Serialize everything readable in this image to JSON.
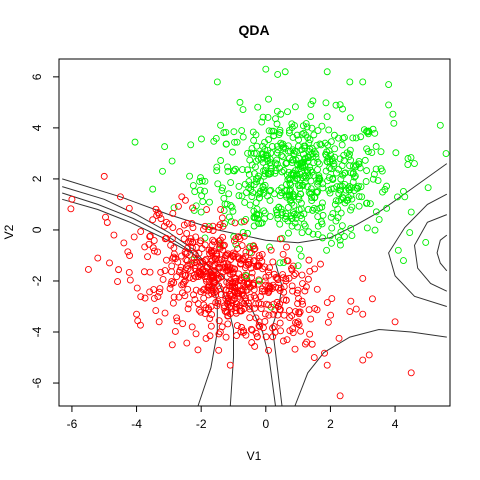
{
  "chart_data": {
    "type": "scatter",
    "title": "QDA",
    "xlabel": "V1",
    "ylabel": "V2",
    "xlim": [
      -6.4,
      5.7
    ],
    "ylim": [
      -6.9,
      6.7
    ],
    "x_ticks": [
      -6,
      -4,
      -2,
      0,
      2,
      4
    ],
    "y_ticks": [
      -6,
      -4,
      -2,
      0,
      2,
      4,
      6
    ],
    "grid": false,
    "legend": "none",
    "marker": "open-circle",
    "series": [
      {
        "color": "#00ee00",
        "center": [
          1.0,
          2.0
        ],
        "spread": [
          1.45,
          1.25
        ],
        "count": 600,
        "points": [
          [
            -0.8,
            5.0
          ],
          [
            0.0,
            6.3
          ],
          [
            0.6,
            6.2
          ],
          [
            1.9,
            6.2
          ],
          [
            2.6,
            5.8
          ],
          [
            3.0,
            5.8
          ],
          [
            3.8,
            5.7
          ],
          [
            3.8,
            4.9
          ],
          [
            5.4,
            4.1
          ],
          [
            -1.5,
            5.8
          ],
          [
            -2.9,
            2.7
          ],
          [
            -1.4,
            4.1
          ],
          [
            4.4,
            2.8
          ],
          [
            4.6,
            2.6
          ],
          [
            4.3,
            1.3
          ],
          [
            4.5,
            0.7
          ],
          [
            -0.6,
            -1.8
          ],
          [
            -0.2,
            -2.0
          ],
          [
            1.0,
            -1.4
          ],
          [
            2.3,
            -0.4
          ],
          [
            -2.0,
            0.7
          ],
          [
            -2.2,
            1.5
          ],
          [
            4.1,
            -0.8
          ],
          [
            -3.5,
            1.6
          ]
        ]
      },
      {
        "color": "#ff0000",
        "center": [
          -1.2,
          -2.0
        ],
        "spread": [
          1.3,
          1.2
        ],
        "count": 600,
        "points": [
          [
            -6.0,
            1.2
          ],
          [
            -5.0,
            2.1
          ],
          [
            -4.5,
            1.3
          ],
          [
            -3.5,
            0.4
          ],
          [
            -3.3,
            0.6
          ],
          [
            -4.7,
            -0.2
          ],
          [
            -5.2,
            -1.1
          ],
          [
            -4.0,
            -3.3
          ],
          [
            -3.3,
            -3.6
          ],
          [
            -2.1,
            -4.7
          ],
          [
            -1.1,
            -5.3
          ],
          [
            1.5,
            -5.0
          ],
          [
            1.9,
            -5.3
          ],
          [
            2.3,
            -6.5
          ],
          [
            3.0,
            -5.1
          ],
          [
            3.2,
            -4.9
          ],
          [
            4.5,
            -5.6
          ],
          [
            4.0,
            -3.6
          ],
          [
            3.0,
            -3.3
          ],
          [
            2.8,
            -3.1
          ],
          [
            2.6,
            -3.2
          ],
          [
            1.0,
            -3.6
          ],
          [
            -2.6,
            1.3
          ],
          [
            -1.4,
            0.8
          ],
          [
            3.0,
            -1.9
          ],
          [
            3.3,
            -2.7
          ]
        ]
      }
    ],
    "decision_contours": "quadratic decision boundary contour levels"
  }
}
